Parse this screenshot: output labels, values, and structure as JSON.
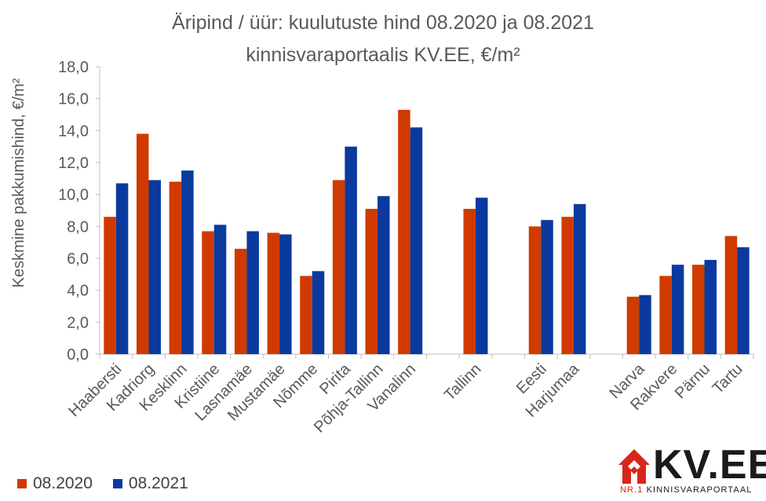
{
  "chart_data": {
    "type": "bar",
    "title": "Äripind / üür: kuulutuste hind 08.2020 ja 08.2021",
    "subtitle": "kinnisvaraportaalis KV.EE, €/m²",
    "ylabel": "Keskmine pakkumishind, €/m²",
    "ylim": [
      0,
      18
    ],
    "yticks": [
      "0,0",
      "2,0",
      "4,0",
      "6,0",
      "8,0",
      "10,0",
      "12,0",
      "14,0",
      "16,0",
      "18,0"
    ],
    "grid": false,
    "legend_position": "bottom-left",
    "categories": [
      "Haabersti",
      "Kadriorg",
      "Kesklinn",
      "Kristiine",
      "Lasnamäe",
      "Mustamäe",
      "Nõmme",
      "Pirita",
      "Põhja-Tallinn",
      "Vanalinn",
      "",
      "Tallinn",
      "",
      "Eesti",
      "Harjumaa",
      "",
      "Narva",
      "Rakvere",
      "Pärnu",
      "Tartu"
    ],
    "series": [
      {
        "name": "08.2020",
        "color": "#d03a00",
        "values": [
          8.6,
          13.8,
          10.8,
          7.7,
          6.6,
          7.6,
          4.9,
          10.9,
          9.1,
          15.3,
          null,
          9.1,
          null,
          8.0,
          8.6,
          null,
          3.6,
          4.9,
          5.6,
          7.4
        ]
      },
      {
        "name": "08.2021",
        "color": "#0a3a9e",
        "values": [
          10.7,
          10.9,
          11.5,
          8.1,
          7.7,
          7.5,
          5.2,
          13.0,
          9.9,
          14.2,
          null,
          9.8,
          null,
          8.4,
          9.4,
          null,
          3.7,
          5.6,
          5.9,
          6.7
        ]
      }
    ]
  },
  "logo": {
    "text": "KV.EE",
    "tagline_prefix": "NR.1",
    "tagline_rest": "KINNISVARAPORTAAL"
  }
}
